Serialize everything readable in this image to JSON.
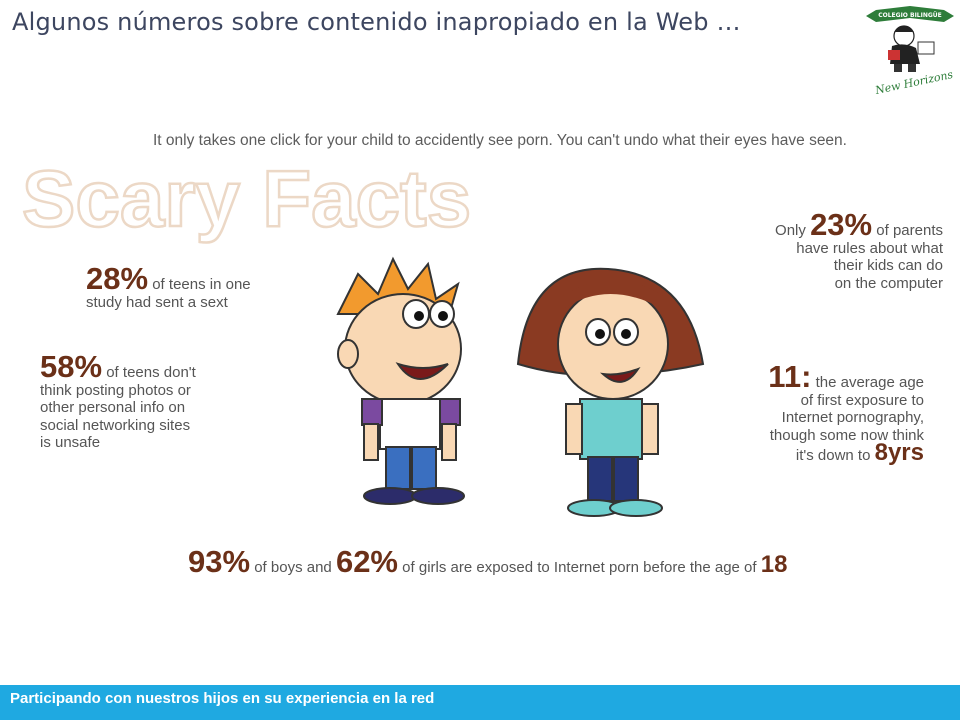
{
  "slide": {
    "title": "Algunos números sobre contenido inapropiado en la Web …",
    "logo": {
      "top_ribbon": "COLEGIO BILINGÜE",
      "script": "New Horizons"
    },
    "intro": "It only takes one click for your child to accidently see porn.  You can't undo what their eyes have seen.",
    "heading": "Scary Facts",
    "facts": {
      "teens_sext": {
        "stat": "28%",
        "line1": "of teens in one",
        "line2": "study had sent a sext"
      },
      "teens_posting": {
        "stat": "58%",
        "line1": "of teens don't",
        "line2": "think posting photos or",
        "line3": "other personal info on",
        "line4": "social networking sites",
        "line5": "is unsafe"
      },
      "parents_rules": {
        "pre": "Only",
        "stat": "23%",
        "line1": "of parents",
        "line2": "have rules about what",
        "line3": "their kids can do",
        "line4": "on the computer"
      },
      "exposure_age": {
        "stat": "11:",
        "line1": "the average age",
        "line2": "of first exposure to",
        "line3": "Internet pornography,",
        "line4": "though some now think",
        "line5": "it's down to",
        "stat2": "8yrs"
      }
    },
    "bottom": {
      "stat_boys": "93%",
      "text_boys": "of boys and",
      "stat_girls": "62%",
      "text_girls": "of girls are exposed to Internet porn before the age of",
      "age": "18"
    },
    "footer": "Participando con nuestros hijos en su experiencia en la red"
  }
}
